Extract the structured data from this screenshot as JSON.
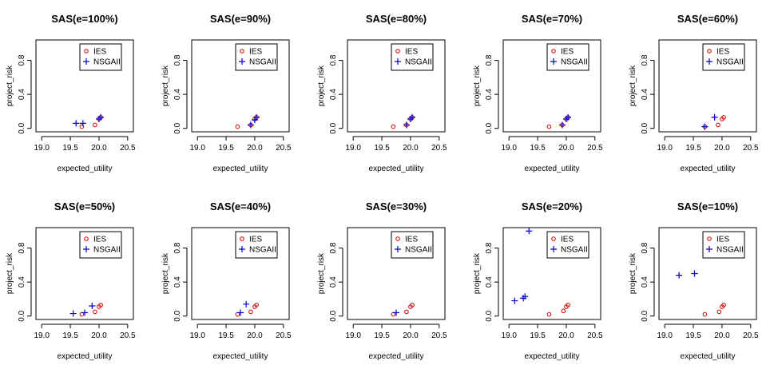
{
  "figure": {
    "legend_labels": [
      "IES",
      "NSGAII"
    ],
    "series_colors": {
      "IES": "#d40000",
      "NSGAII": "#0000cc"
    },
    "series_markers": {
      "IES": "circle-icon",
      "NSGAII": "plus-icon"
    }
  },
  "chart_data": [
    {
      "type": "scatter",
      "title": "SAS(e=100%)",
      "xlabel": "expected_utility",
      "ylabel": "project_risk",
      "xlim": [
        18.9,
        20.6
      ],
      "ylim": [
        -0.04,
        1.04
      ],
      "xticks": [
        "19.0",
        "19.5",
        "20.0",
        "20.5"
      ],
      "yticks": [
        "0.0",
        "0.4",
        "0.8"
      ],
      "legend": "top-right",
      "series": [
        {
          "name": "IES",
          "points": [
            [
              19.7,
              0.02
            ],
            [
              19.93,
              0.04
            ],
            [
              20.0,
              0.11
            ],
            [
              20.03,
              0.13
            ]
          ]
        },
        {
          "name": "NSGAII",
          "points": [
            [
              19.6,
              0.06
            ],
            [
              19.72,
              0.06
            ],
            [
              20.0,
              0.11
            ],
            [
              20.03,
              0.13
            ]
          ]
        }
      ]
    },
    {
      "type": "scatter",
      "title": "SAS(e=90%)",
      "xlabel": "expected_utility",
      "ylabel": "project_risk",
      "xlim": [
        18.9,
        20.6
      ],
      "ylim": [
        -0.04,
        1.04
      ],
      "xticks": [
        "19.0",
        "19.5",
        "20.0",
        "20.5"
      ],
      "yticks": [
        "0.0",
        "0.4",
        "0.8"
      ],
      "legend": "top-right",
      "series": [
        {
          "name": "IES",
          "points": [
            [
              19.7,
              0.02
            ],
            [
              19.93,
              0.04
            ],
            [
              20.0,
              0.11
            ],
            [
              20.03,
              0.13
            ]
          ]
        },
        {
          "name": "NSGAII",
          "points": [
            [
              19.93,
              0.04
            ],
            [
              20.0,
              0.1
            ],
            [
              20.03,
              0.13
            ]
          ]
        }
      ]
    },
    {
      "type": "scatter",
      "title": "SAS(e=80%)",
      "xlabel": "expected_utility",
      "ylabel": "project_risk",
      "xlim": [
        18.9,
        20.6
      ],
      "ylim": [
        -0.04,
        1.04
      ],
      "xticks": [
        "19.0",
        "19.5",
        "20.0",
        "20.5"
      ],
      "yticks": [
        "0.0",
        "0.4",
        "0.8"
      ],
      "legend": "top-right",
      "series": [
        {
          "name": "IES",
          "points": [
            [
              19.7,
              0.02
            ],
            [
              19.93,
              0.04
            ],
            [
              20.0,
              0.11
            ],
            [
              20.03,
              0.13
            ]
          ]
        },
        {
          "name": "NSGAII",
          "points": [
            [
              19.93,
              0.04
            ],
            [
              20.0,
              0.11
            ],
            [
              20.03,
              0.13
            ]
          ]
        }
      ]
    },
    {
      "type": "scatter",
      "title": "SAS(e=70%)",
      "xlabel": "expected_utility",
      "ylabel": "project_risk",
      "xlim": [
        18.9,
        20.6
      ],
      "ylim": [
        -0.04,
        1.04
      ],
      "xticks": [
        "19.0",
        "19.5",
        "20.0",
        "20.5"
      ],
      "yticks": [
        "0.0",
        "0.4",
        "0.8"
      ],
      "legend": "top-right",
      "series": [
        {
          "name": "IES",
          "points": [
            [
              19.7,
              0.02
            ],
            [
              19.93,
              0.04
            ],
            [
              20.0,
              0.11
            ],
            [
              20.03,
              0.13
            ]
          ]
        },
        {
          "name": "NSGAII",
          "points": [
            [
              19.93,
              0.04
            ],
            [
              20.0,
              0.11
            ],
            [
              20.03,
              0.13
            ]
          ]
        }
      ]
    },
    {
      "type": "scatter",
      "title": "SAS(e=60%)",
      "xlabel": "expected_utility",
      "ylabel": "project_risk",
      "xlim": [
        18.9,
        20.6
      ],
      "ylim": [
        -0.04,
        1.04
      ],
      "xticks": [
        "19.0",
        "19.5",
        "20.0",
        "20.5"
      ],
      "yticks": [
        "0.0",
        "0.4",
        "0.8"
      ],
      "legend": "top-right",
      "series": [
        {
          "name": "IES",
          "points": [
            [
              19.7,
              0.02
            ],
            [
              19.93,
              0.04
            ],
            [
              20.0,
              0.11
            ],
            [
              20.03,
              0.13
            ]
          ]
        },
        {
          "name": "NSGAII",
          "points": [
            [
              19.7,
              0.02
            ],
            [
              19.87,
              0.13
            ]
          ]
        }
      ]
    },
    {
      "type": "scatter",
      "title": "SAS(e=50%)",
      "xlabel": "expected_utility",
      "ylabel": "project_risk",
      "xlim": [
        18.9,
        20.6
      ],
      "ylim": [
        -0.04,
        1.04
      ],
      "xticks": [
        "19.0",
        "19.5",
        "20.0",
        "20.5"
      ],
      "yticks": [
        "0.0",
        "0.4",
        "0.8"
      ],
      "legend": "top-right",
      "series": [
        {
          "name": "IES",
          "points": [
            [
              19.7,
              0.02
            ],
            [
              19.93,
              0.05
            ],
            [
              20.0,
              0.11
            ],
            [
              20.03,
              0.13
            ]
          ]
        },
        {
          "name": "NSGAII",
          "points": [
            [
              19.55,
              0.03
            ],
            [
              19.75,
              0.04
            ],
            [
              19.88,
              0.12
            ]
          ]
        }
      ]
    },
    {
      "type": "scatter",
      "title": "SAS(e=40%)",
      "xlabel": "expected_utility",
      "ylabel": "project_risk",
      "xlim": [
        18.9,
        20.6
      ],
      "ylim": [
        -0.04,
        1.04
      ],
      "xticks": [
        "19.0",
        "19.5",
        "20.0",
        "20.5"
      ],
      "yticks": [
        "0.0",
        "0.4",
        "0.8"
      ],
      "legend": "top-right",
      "series": [
        {
          "name": "IES",
          "points": [
            [
              19.7,
              0.02
            ],
            [
              19.93,
              0.05
            ],
            [
              20.0,
              0.11
            ],
            [
              20.03,
              0.13
            ]
          ]
        },
        {
          "name": "NSGAII",
          "points": [
            [
              19.75,
              0.04
            ],
            [
              19.85,
              0.14
            ]
          ]
        }
      ]
    },
    {
      "type": "scatter",
      "title": "SAS(e=30%)",
      "xlabel": "expected_utility",
      "ylabel": "project_risk",
      "xlim": [
        18.9,
        20.6
      ],
      "ylim": [
        -0.04,
        1.04
      ],
      "xticks": [
        "19.0",
        "19.5",
        "20.0",
        "20.5"
      ],
      "yticks": [
        "0.0",
        "0.4",
        "0.8"
      ],
      "legend": "top-right",
      "series": [
        {
          "name": "IES",
          "points": [
            [
              19.7,
              0.02
            ],
            [
              19.93,
              0.05
            ],
            [
              20.0,
              0.11
            ],
            [
              20.03,
              0.13
            ]
          ]
        },
        {
          "name": "NSGAII",
          "points": [
            [
              19.75,
              0.04
            ]
          ]
        }
      ]
    },
    {
      "type": "scatter",
      "title": "SAS(e=20%)",
      "xlabel": "expected_utility",
      "ylabel": "project_risk",
      "xlim": [
        18.9,
        20.6
      ],
      "ylim": [
        -0.04,
        1.04
      ],
      "xticks": [
        "19.0",
        "19.5",
        "20.0",
        "20.5"
      ],
      "yticks": [
        "0.0",
        "0.4",
        "0.8"
      ],
      "legend": "top-right",
      "series": [
        {
          "name": "IES",
          "points": [
            [
              19.7,
              0.02
            ],
            [
              19.95,
              0.06
            ],
            [
              20.0,
              0.11
            ],
            [
              20.03,
              0.13
            ]
          ]
        },
        {
          "name": "NSGAII",
          "points": [
            [
              19.1,
              0.18
            ],
            [
              19.25,
              0.21
            ],
            [
              19.28,
              0.23
            ],
            [
              19.35,
              1.0
            ]
          ]
        }
      ]
    },
    {
      "type": "scatter",
      "title": "SAS(e=10%)",
      "xlabel": "expected_utility",
      "ylabel": "project_risk",
      "xlim": [
        18.9,
        20.6
      ],
      "ylim": [
        -0.04,
        1.04
      ],
      "xticks": [
        "19.0",
        "19.5",
        "20.0",
        "20.5"
      ],
      "yticks": [
        "0.0",
        "0.4",
        "0.8"
      ],
      "legend": "top-right",
      "series": [
        {
          "name": "IES",
          "points": [
            [
              19.7,
              0.02
            ],
            [
              19.95,
              0.05
            ],
            [
              20.0,
              0.11
            ],
            [
              20.03,
              0.13
            ]
          ]
        },
        {
          "name": "NSGAII",
          "points": [
            [
              19.25,
              0.48
            ],
            [
              19.52,
              0.5
            ]
          ]
        }
      ]
    }
  ]
}
